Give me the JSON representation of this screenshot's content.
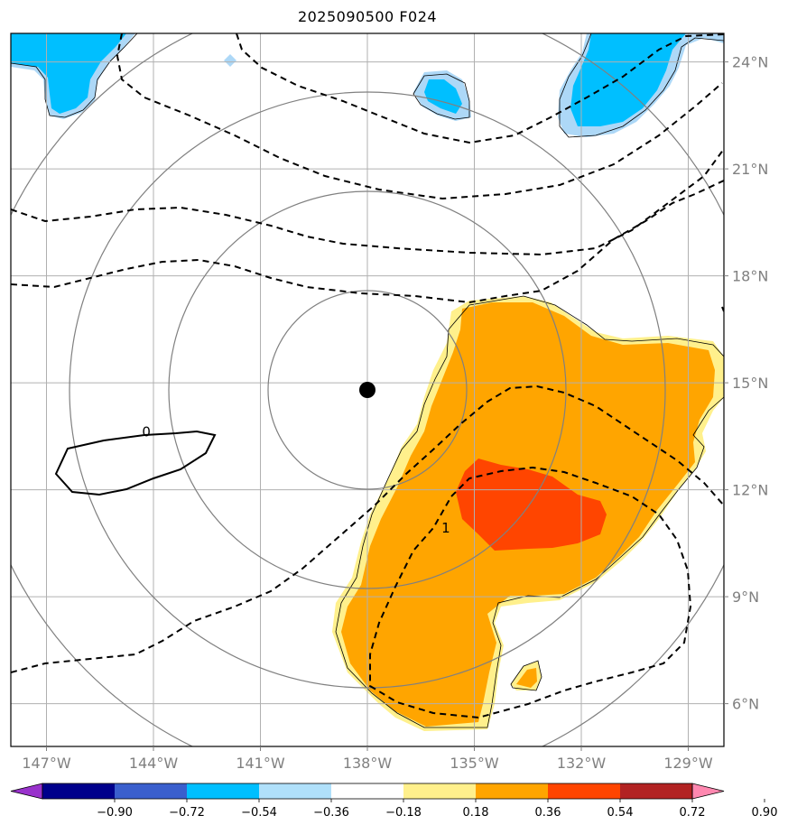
{
  "title": "2025090500 F024",
  "map": {
    "lon_range": [
      -148.0,
      -128.0
    ],
    "lat_range": [
      4.8,
      24.8
    ],
    "lon_ticks": [
      {
        "value": -147,
        "label": "147°W"
      },
      {
        "value": -144,
        "label": "144°W"
      },
      {
        "value": -141,
        "label": "141°W"
      },
      {
        "value": -138,
        "label": "138°W"
      },
      {
        "value": -135,
        "label": "135°W"
      },
      {
        "value": -132,
        "label": "132°W"
      },
      {
        "value": -129,
        "label": "129°W"
      }
    ],
    "lat_ticks": [
      {
        "value": 6,
        "label": "6°N"
      },
      {
        "value": 9,
        "label": "9°N"
      },
      {
        "value": 12,
        "label": "12°N"
      },
      {
        "value": 15,
        "label": "15°N"
      },
      {
        "value": 18,
        "label": "18°N"
      },
      {
        "value": 21,
        "label": "21°N"
      },
      {
        "value": 24,
        "label": "24°N"
      }
    ],
    "storm_center": {
      "lon": -138.0,
      "lat": 14.8
    },
    "contour_labels": [
      {
        "text": "0",
        "lon": -144.2,
        "lat": 13.5
      },
      {
        "text": "1",
        "lon": -135.8,
        "lat": 10.8
      }
    ],
    "colors": {
      "grid": "#b0b0b0",
      "range_rings": "#808080",
      "orange": "#ffa500",
      "red_orange": "#ff4500",
      "light_yellow": "#fff08c",
      "deep_sky_blue": "#00bfff",
      "light_blue": "#add8f7"
    }
  },
  "colorbar": {
    "labels": [
      "−0.90",
      "−0.72",
      "−0.54",
      "−0.36",
      "−0.18",
      "0.18",
      "0.36",
      "0.54",
      "0.72",
      "0.90"
    ],
    "colors": [
      "#9932cc",
      "#00008b",
      "#3a5fcd",
      "#00bfff",
      "#b0e0fa",
      "#ffffff",
      "#fff08c",
      "#ffa500",
      "#ff4500",
      "#b22222",
      "#ff88b0"
    ]
  }
}
